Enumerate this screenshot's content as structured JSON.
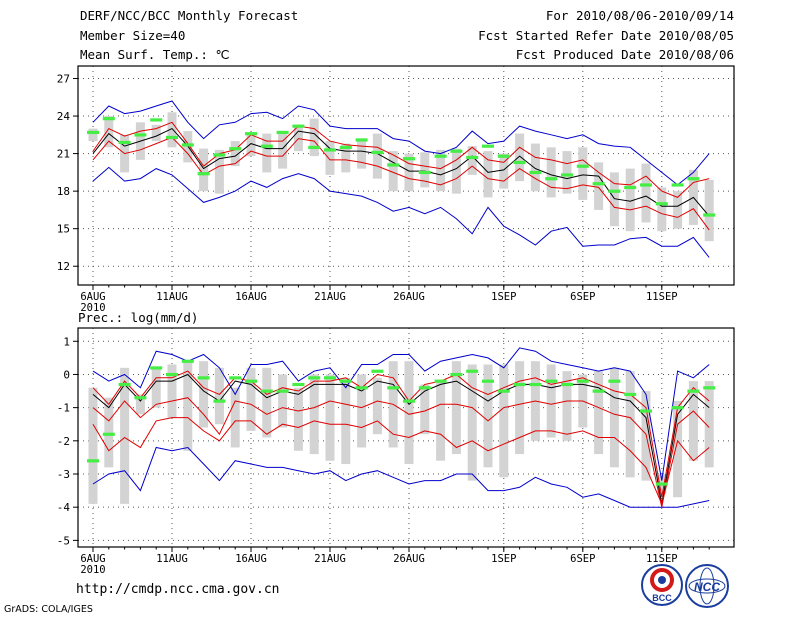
{
  "header": {
    "title": "DERF/NCC/BCC Monthly Forecast",
    "member_size": "Member Size=40",
    "variable": "Mean Surf. Temp.: ℃",
    "period": "For 2010/08/06-2010/09/14",
    "start_date": "Fcst Started Refer Date 2010/08/05",
    "produced_date": "Fcst Produced Date 2010/08/06"
  },
  "footer": {
    "url": "http://cmdp.ncc.cma.gov.cn",
    "credit": "GrADS: COLA/IGES",
    "logo_bcc": "BCC",
    "logo_ncc": "NCC"
  },
  "colors": {
    "box": "#d3d3d3",
    "mean": "#000000",
    "band": "#e00000",
    "envelope": "#0000cc",
    "median": "#44ee44",
    "grid": "#555555"
  },
  "chart_data": [
    {
      "type": "line",
      "title": "Mean Surf. Temp.: ℃",
      "xlabel": "",
      "ylabel": "℃",
      "days": 40,
      "x_tick_labels": [
        "6AUG",
        "11AUG",
        "16AUG",
        "21AUG",
        "26AUG",
        "1SEP",
        "6SEP",
        "11SEP"
      ],
      "x_tick_days": [
        0,
        5,
        10,
        15,
        20,
        26,
        31,
        36
      ],
      "x_year_label": "2010",
      "ylim": [
        10.5,
        28
      ],
      "yticks": [
        12,
        15,
        18,
        21,
        24,
        27
      ],
      "series": [
        {
          "name": "max",
          "values": [
            23.5,
            24.8,
            24.2,
            24.4,
            24.8,
            25.2,
            23.5,
            22.2,
            23.3,
            23.5,
            24.2,
            24.3,
            23.8,
            24.8,
            24.5,
            23.2,
            23.0,
            23.0,
            23.0,
            22.2,
            22.0,
            21.2,
            21.0,
            21.5,
            22.8,
            21.8,
            22.0,
            23.2,
            22.8,
            22.5,
            22.2,
            22.5,
            21.8,
            21.6,
            21.5,
            20.5,
            19.5,
            18.5,
            19.5,
            21.0
          ]
        },
        {
          "name": "upper",
          "values": [
            21.2,
            23.0,
            22.4,
            22.8,
            23.0,
            23.5,
            21.8,
            20.0,
            21.0,
            21.3,
            22.5,
            22.0,
            22.0,
            23.2,
            23.0,
            22.0,
            21.7,
            21.6,
            21.5,
            20.9,
            20.2,
            20.0,
            19.8,
            20.5,
            21.5,
            20.5,
            20.3,
            21.5,
            20.7,
            20.5,
            20.2,
            20.5,
            19.5,
            18.6,
            18.5,
            19.2,
            18.0,
            17.5,
            18.7,
            19.0
          ]
        },
        {
          "name": "mean",
          "values": [
            21.0,
            22.6,
            21.6,
            22.0,
            22.4,
            23.0,
            21.6,
            19.8,
            20.6,
            20.8,
            21.8,
            21.4,
            21.4,
            22.8,
            22.6,
            21.4,
            21.2,
            21.2,
            21.0,
            20.3,
            19.6,
            19.6,
            19.3,
            19.8,
            20.8,
            19.5,
            19.7,
            20.8,
            19.8,
            19.3,
            19.0,
            19.3,
            19.2,
            17.4,
            17.2,
            17.6,
            16.8,
            16.8,
            17.5,
            16.0
          ]
        },
        {
          "name": "lower",
          "values": [
            20.5,
            22.0,
            21.0,
            21.3,
            21.8,
            22.3,
            21.0,
            19.3,
            20.0,
            20.2,
            21.2,
            20.8,
            20.8,
            22.2,
            22.0,
            20.5,
            20.5,
            20.3,
            20.0,
            19.5,
            19.0,
            18.8,
            18.5,
            19.0,
            20.0,
            19.0,
            18.8,
            19.8,
            19.0,
            18.3,
            18.2,
            18.5,
            18.3,
            16.7,
            16.5,
            16.8,
            16.2,
            15.9,
            16.6,
            14.9
          ]
        },
        {
          "name": "min",
          "values": [
            18.8,
            19.9,
            18.8,
            19.0,
            19.8,
            19.3,
            18.2,
            17.1,
            17.5,
            18.0,
            18.8,
            18.3,
            19.0,
            19.4,
            19.0,
            18.0,
            17.8,
            17.6,
            17.1,
            16.4,
            16.7,
            16.2,
            16.7,
            15.8,
            14.6,
            16.7,
            15.2,
            14.5,
            13.7,
            14.8,
            15.1,
            13.6,
            13.7,
            13.7,
            14.2,
            14.3,
            13.6,
            13.6,
            14.3,
            12.7
          ]
        }
      ],
      "boxes": {
        "high": [
          23.0,
          24.0,
          22.5,
          23.5,
          23.3,
          24.3,
          22.8,
          21.4,
          21.3,
          22.0,
          22.6,
          22.6,
          22.8,
          23.2,
          23.8,
          22.0,
          21.8,
          22.0,
          22.6,
          21.2,
          21.0,
          21.1,
          21.3,
          21.4,
          21.6,
          21.2,
          21.0,
          22.6,
          21.8,
          21.5,
          21.2,
          21.5,
          20.3,
          19.5,
          19.8,
          20.2,
          18.3,
          18.0,
          19.7,
          18.9
        ],
        "low": [
          22.0,
          21.5,
          19.5,
          20.5,
          22.0,
          21.5,
          20.3,
          18.0,
          17.8,
          20.0,
          20.8,
          19.5,
          19.8,
          21.2,
          20.8,
          19.3,
          19.5,
          19.8,
          19.0,
          18.0,
          18.0,
          18.3,
          18.0,
          17.8,
          19.3,
          17.5,
          18.2,
          18.8,
          18.0,
          17.5,
          17.8,
          17.3,
          16.5,
          15.2,
          14.8,
          15.5,
          14.8,
          15.0,
          15.3,
          14.0
        ]
      },
      "median": [
        22.7,
        23.8,
        21.9,
        22.5,
        23.7,
        22.3,
        21.7,
        19.4,
        20.9,
        21.4,
        22.6,
        21.6,
        22.7,
        23.2,
        21.5,
        21.3,
        21.5,
        22.1,
        21.1,
        20.1,
        20.6,
        19.5,
        20.8,
        21.2,
        20.7,
        21.6,
        20.8,
        20.3,
        19.5,
        19.0,
        19.3,
        20.0,
        18.6,
        18.0,
        18.3,
        18.5,
        17.0,
        18.5,
        19.0,
        16.1
      ]
    },
    {
      "type": "line",
      "title": "Prec.: log(mm/d)",
      "xlabel": "",
      "ylabel": "log(mm/d)",
      "days": 40,
      "x_tick_labels": [
        "6AUG",
        "11AUG",
        "16AUG",
        "21AUG",
        "26AUG",
        "1SEP",
        "6SEP",
        "11SEP"
      ],
      "x_tick_days": [
        0,
        5,
        10,
        15,
        20,
        26,
        31,
        36
      ],
      "x_year_label": "2010",
      "ylim": [
        -5.2,
        1.4
      ],
      "yticks": [
        1,
        0,
        -1,
        -2,
        -3,
        -4,
        -5
      ],
      "series": [
        {
          "name": "max",
          "values": [
            0.1,
            -0.2,
            0.0,
            -0.4,
            0.7,
            0.6,
            0.4,
            0.6,
            0.2,
            -0.6,
            0.3,
            0.3,
            0.4,
            -0.2,
            0.1,
            0.2,
            -0.4,
            0.3,
            0.3,
            0.6,
            0.6,
            0.1,
            0.4,
            0.5,
            0.6,
            0.5,
            0.2,
            0.8,
            0.7,
            0.4,
            0.3,
            0.2,
            0.1,
            0.2,
            0.1,
            -0.6,
            -3.2,
            0.1,
            -0.1,
            0.3
          ]
        },
        {
          "name": "upper",
          "values": [
            -0.4,
            -0.9,
            -0.2,
            -0.7,
            -0.1,
            -0.1,
            0.1,
            -0.4,
            -0.6,
            -0.1,
            -0.2,
            -0.6,
            -0.4,
            -0.5,
            -0.2,
            -0.2,
            -0.1,
            -0.4,
            0.0,
            -0.1,
            -0.8,
            -0.3,
            -0.2,
            0.0,
            -0.4,
            -0.6,
            -0.4,
            -0.2,
            -0.1,
            -0.3,
            -0.2,
            -0.1,
            -0.3,
            -0.5,
            -0.6,
            -1.0,
            -3.7,
            -1.0,
            -0.4,
            -0.8
          ]
        },
        {
          "name": "mean",
          "values": [
            -0.6,
            -1.0,
            -0.3,
            -0.8,
            -0.2,
            -0.2,
            0.0,
            -0.5,
            -0.8,
            -0.2,
            -0.3,
            -0.7,
            -0.5,
            -0.6,
            -0.3,
            -0.3,
            -0.3,
            -0.5,
            -0.2,
            -0.3,
            -0.9,
            -0.5,
            -0.3,
            -0.2,
            -0.5,
            -0.8,
            -0.5,
            -0.3,
            -0.3,
            -0.4,
            -0.3,
            -0.3,
            -0.4,
            -0.7,
            -0.8,
            -1.3,
            -3.9,
            -1.2,
            -0.6,
            -1.0
          ]
        },
        {
          "name": "lower",
          "values": [
            -1.0,
            -1.4,
            -0.8,
            -1.3,
            -0.9,
            -0.8,
            -0.7,
            -1.2,
            -1.8,
            -0.8,
            -0.9,
            -1.2,
            -1.0,
            -1.1,
            -1.0,
            -0.8,
            -0.9,
            -1.0,
            -0.8,
            -0.9,
            -1.2,
            -1.1,
            -0.9,
            -0.9,
            -1.0,
            -1.4,
            -1.0,
            -0.9,
            -0.8,
            -0.9,
            -0.8,
            -0.8,
            -1.0,
            -1.2,
            -1.3,
            -1.8,
            -4.0,
            -1.5,
            -1.1,
            -1.6
          ]
        },
        {
          "name": "lower2",
          "values": [
            -1.5,
            -2.3,
            -1.9,
            -2.2,
            -1.4,
            -1.3,
            -1.3,
            -1.7,
            -2.0,
            -1.4,
            -1.4,
            -1.8,
            -1.5,
            -1.6,
            -1.4,
            -1.5,
            -1.5,
            -1.6,
            -1.4,
            -1.8,
            -1.9,
            -1.7,
            -1.8,
            -2.2,
            -2.0,
            -2.3,
            -2.1,
            -1.9,
            -1.7,
            -1.7,
            -1.8,
            -1.7,
            -1.9,
            -1.9,
            -2.3,
            -2.8,
            -3.9,
            -2.0,
            -2.6,
            -2.2
          ]
        },
        {
          "name": "min",
          "values": [
            -3.3,
            -3.0,
            -2.9,
            -3.5,
            -2.2,
            -2.3,
            -2.2,
            -2.7,
            -3.2,
            -2.6,
            -2.7,
            -2.8,
            -2.8,
            -2.9,
            -3.0,
            -2.9,
            -3.2,
            -3.0,
            -2.9,
            -3.1,
            -3.3,
            -3.2,
            -3.2,
            -3.0,
            -3.0,
            -3.5,
            -3.5,
            -3.4,
            -3.1,
            -3.3,
            -3.4,
            -3.7,
            -3.6,
            -3.8,
            -4.0,
            -4.0,
            -4.0,
            -4.0,
            -3.9,
            -3.8
          ]
        }
      ],
      "boxes": {
        "high": [
          -0.4,
          -0.7,
          0.2,
          -0.6,
          0.2,
          0.3,
          0.4,
          0.4,
          0.2,
          -0.4,
          0.2,
          0.2,
          0.0,
          -0.4,
          0.0,
          0.0,
          -0.1,
          0.0,
          -0.1,
          0.4,
          0.4,
          -0.3,
          -0.2,
          0.4,
          0.3,
          0.3,
          0.3,
          0.4,
          0.4,
          0.3,
          0.1,
          0.0,
          0.1,
          0.2,
          0.1,
          -0.5,
          -3.0,
          -0.8,
          -0.2,
          -0.2
        ],
        "low": [
          -3.9,
          -2.8,
          -3.9,
          -1.2,
          -1.0,
          -1.3,
          -2.3,
          -1.6,
          -1.5,
          -2.2,
          -1.7,
          -1.9,
          -1.6,
          -2.3,
          -2.4,
          -2.6,
          -2.7,
          -2.2,
          -1.8,
          -2.2,
          -2.7,
          -1.8,
          -2.6,
          -2.4,
          -3.2,
          -2.8,
          -3.1,
          -2.4,
          -2.0,
          -1.9,
          -2.0,
          -1.6,
          -2.4,
          -2.8,
          -3.1,
          -3.2,
          -3.6,
          -3.7,
          -2.6,
          -2.8
        ]
      },
      "median": [
        -2.6,
        -1.8,
        -0.3,
        -0.7,
        0.2,
        0.0,
        0.4,
        -0.1,
        -0.8,
        -0.1,
        -0.2,
        -0.5,
        -0.5,
        -0.3,
        -0.1,
        -0.1,
        -0.2,
        -0.4,
        0.1,
        -0.4,
        -0.8,
        -0.4,
        -0.2,
        0.0,
        0.1,
        -0.2,
        -0.5,
        -0.3,
        -0.3,
        -0.2,
        -0.3,
        -0.2,
        -0.5,
        -0.2,
        -0.6,
        -1.1,
        -3.3,
        -1.0,
        -0.5,
        -0.4
      ]
    }
  ]
}
